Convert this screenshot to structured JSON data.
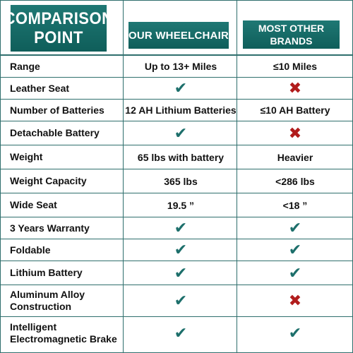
{
  "header": {
    "comparison_point": "COMPARISON\nPOINT",
    "our_wheelchair": "OUR WHEELCHAIR",
    "other_brands": "MOST OTHER\nBRANDS"
  },
  "rows": [
    {
      "label": "Range",
      "ours": "Up to 13+ Miles",
      "others": "≤10 Miles"
    },
    {
      "label": "Leather Seat",
      "ours_icon": "check-icon",
      "others_icon": "cross-icon"
    },
    {
      "label": "Number of Batteries",
      "ours": "12 AH Lithium Batteries",
      "others": "≤10 AH Battery"
    },
    {
      "label": "Detachable Battery",
      "ours_icon": "check-icon",
      "others_icon": "cross-icon"
    },
    {
      "label": "Weight",
      "ours": "65 lbs with battery",
      "others": "Heavier"
    },
    {
      "label": "Weight Capacity",
      "ours": "365 lbs",
      "others": "<286 lbs"
    },
    {
      "label": "Wide Seat",
      "ours": "19.5 ”",
      "others": "<18 ”"
    },
    {
      "label": "3 Years  Warranty",
      "ours_icon": "check-icon",
      "others_icon": "check-icon"
    },
    {
      "label": "Foldable",
      "ours_icon": "check-icon",
      "others_icon": "check-icon"
    },
    {
      "label": "Lithium Battery",
      "ours_icon": "check-icon",
      "others_icon": "check-icon"
    },
    {
      "label": "Aluminum Alloy\nConstruction",
      "ours_icon": "check-icon",
      "others_icon": "cross-icon"
    },
    {
      "label": "Intelligent\nElectromagnetic Brake",
      "ours_icon": "check-icon",
      "others_icon": "check-icon"
    }
  ],
  "colors": {
    "header_bg": "#0f5e5a",
    "check": "#1d6f6b",
    "cross": "#b11c1c",
    "grid": "#2f6f6d"
  }
}
